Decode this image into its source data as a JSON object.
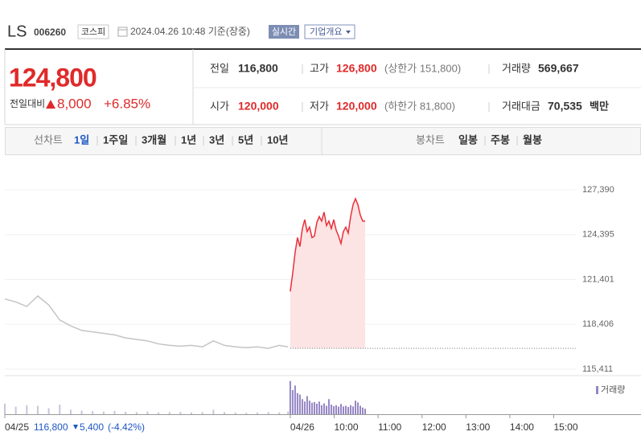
{
  "header": {
    "name": "LS",
    "code": "006260",
    "market": "코스피",
    "time": "2024.04.26 10:48 기준(장중)",
    "realtime": "실시간",
    "company": "기업개요"
  },
  "quote": {
    "price": "124,800",
    "change_label": "전일대비",
    "change": "8,000",
    "rate": "+6.85%"
  },
  "stats": [
    {
      "label": "전일",
      "value": "116,800"
    },
    {
      "label": "고가",
      "value": "126,800",
      "extra": "(상한가 151,800)"
    },
    {
      "label": "거래량",
      "value": "569,667"
    },
    {
      "label": "시가",
      "value": "120,000"
    },
    {
      "label": "저가",
      "value": "120,000",
      "extra": "(하한가 81,800)"
    },
    {
      "label": "거래대금",
      "value": "70,535",
      "unit": "백만"
    }
  ],
  "tabs": {
    "line_label": "선차트",
    "line_items": [
      "1일",
      "1주일",
      "3개월",
      "1년",
      "3년",
      "5년",
      "10년"
    ],
    "candle_label": "봉차트",
    "candle_items": [
      "일봉",
      "주봉",
      "월봉"
    ]
  },
  "footer": {
    "prev_close": "116,800",
    "change": "5,400",
    "rate": "(-4.42%)"
  },
  "chart_data": [
    {
      "type": "line",
      "xlim": [
        0,
        13
      ],
      "ylim": [
        115411,
        127390
      ],
      "xticks": [
        {
          "value": 0,
          "label": "04/25"
        },
        {
          "value": 6.5,
          "label": "04/26"
        },
        {
          "value": 7.5,
          "label": "10:00"
        },
        {
          "value": 8.5,
          "label": "11:00"
        },
        {
          "value": 9.5,
          "label": "12:00"
        },
        {
          "value": 10.5,
          "label": "13:00"
        },
        {
          "value": 11.5,
          "label": "14:00"
        },
        {
          "value": 12.5,
          "label": "15:00"
        }
      ],
      "yticks": [
        {
          "value": 115411,
          "label": "115,411"
        },
        {
          "value": 118406,
          "label": "118,406"
        },
        {
          "value": 121401,
          "label": "121,401"
        },
        {
          "value": 124395,
          "label": "124,395"
        },
        {
          "value": 127390,
          "label": "127,390"
        }
      ],
      "grid": true,
      "baseline": 116800,
      "series": [
        {
          "color": "#c4c4c4",
          "x": [
            0,
            0.25,
            0.5,
            0.75,
            1,
            1.25,
            1.5,
            1.75,
            2,
            2.25,
            2.5,
            2.75,
            3,
            3.25,
            3.5,
            3.75,
            4,
            4.25,
            4.5,
            4.75,
            5,
            5.25,
            5.5,
            5.75,
            6,
            6.25,
            6.45
          ],
          "values": [
            120100,
            119900,
            119600,
            120300,
            119700,
            118700,
            118300,
            118000,
            117900,
            117800,
            117700,
            117500,
            117400,
            117300,
            117100,
            117000,
            116950,
            117000,
            116900,
            117300,
            117000,
            116900,
            116850,
            116900,
            116800,
            117000,
            116900
          ]
        },
        {
          "color": "#e8303a",
          "area_color": "#fde4e4",
          "x": [
            6.5,
            6.555,
            6.61,
            6.665,
            6.72,
            6.775,
            6.83,
            6.885,
            6.94,
            6.995,
            7.05,
            7.105,
            7.16,
            7.215,
            7.27,
            7.325,
            7.38,
            7.435,
            7.49,
            7.545,
            7.6,
            7.655,
            7.71,
            7.765,
            7.82,
            7.875,
            7.93,
            7.985,
            8.04,
            8.095,
            8.15,
            8.205
          ],
          "values": [
            120600,
            121800,
            123200,
            124200,
            123600,
            124800,
            125400,
            124600,
            124900,
            124200,
            124300,
            125200,
            125600,
            125300,
            125900,
            125000,
            125300,
            124800,
            125400,
            124700,
            124300,
            123800,
            124600,
            124900,
            124500,
            125600,
            126400,
            126800,
            126400,
            125700,
            125300,
            125300
          ]
        }
      ]
    },
    {
      "type": "bar",
      "ylim": [
        0,
        12000
      ],
      "series": [
        {
          "color": "#c9c5d8",
          "x": [
            0,
            0.25,
            0.5,
            0.75,
            1,
            1.25,
            1.5,
            1.75,
            2,
            2.25,
            2.5,
            2.75,
            3,
            3.25,
            3.5,
            3.75,
            4,
            4.25,
            4.5,
            4.75,
            5,
            5.25,
            5.5,
            5.75,
            6,
            6.25,
            6.45
          ],
          "values": [
            3500,
            2500,
            3000,
            2800,
            2000,
            3200,
            1500,
            1200,
            1000,
            900,
            1100,
            800,
            700,
            900,
            600,
            700,
            800,
            600,
            700,
            1500,
            700,
            600,
            500,
            600,
            700,
            600,
            900
          ]
        },
        {
          "name": "거래량",
          "color": "#9586c4",
          "x": [
            6.5,
            6.555,
            6.61,
            6.665,
            6.72,
            6.775,
            6.83,
            6.885,
            6.94,
            6.995,
            7.05,
            7.105,
            7.16,
            7.215,
            7.27,
            7.325,
            7.38,
            7.435,
            7.49,
            7.545,
            7.6,
            7.655,
            7.71,
            7.765,
            7.82,
            7.875,
            7.93,
            7.985,
            8.04,
            8.095,
            8.15,
            8.205
          ],
          "values": [
            11000,
            8000,
            9500,
            7000,
            6500,
            5000,
            4200,
            6000,
            4500,
            3800,
            4000,
            3500,
            4200,
            3000,
            3600,
            2800,
            5000,
            3200,
            2700,
            3000,
            2500,
            3400,
            2600,
            2800,
            2400,
            3000,
            2600,
            4500,
            3900,
            2800,
            2200,
            1800
          ]
        }
      ]
    }
  ]
}
